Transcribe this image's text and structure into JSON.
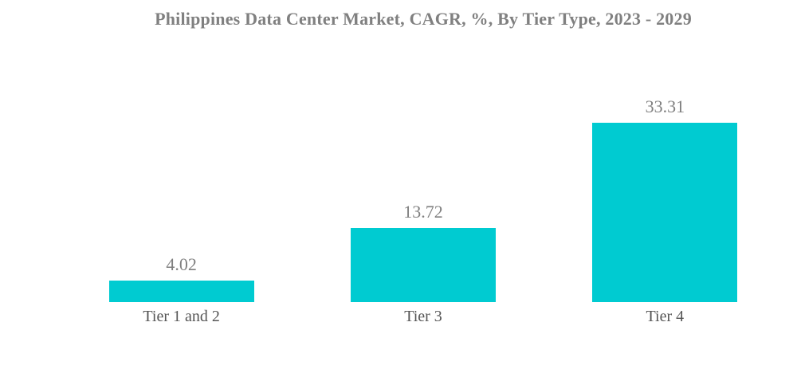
{
  "chart_data": {
    "type": "bar",
    "title": "Philippines Data Center Market, CAGR, %, By Tier Type, 2023 - 2029",
    "categories": [
      "Tier 1 and 2",
      "Tier 3",
      "Tier 4"
    ],
    "values": [
      4.02,
      13.72,
      33.31
    ],
    "value_labels": [
      "4.02",
      "13.72",
      "33.31"
    ],
    "xlabel": "",
    "ylabel": "",
    "ylim": [
      0,
      35
    ],
    "grid": false,
    "axes_visible": false,
    "legend_position": "none",
    "bar_color": "#00cbd1",
    "title_color": "#808080",
    "value_label_color": "#7f7f7f",
    "category_label_color": "#555555",
    "background_color": "#ffffff"
  }
}
